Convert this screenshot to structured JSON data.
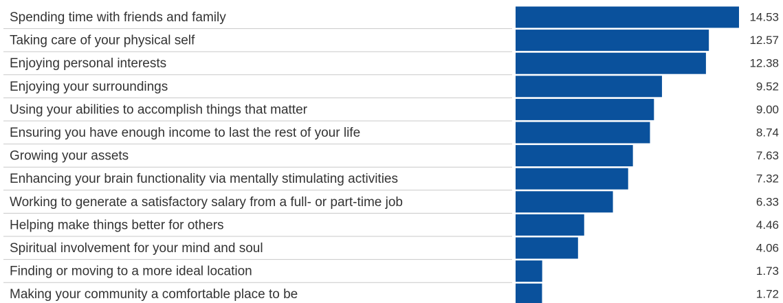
{
  "chart_data": {
    "type": "hbar",
    "categories": [
      "Spending time with friends and family",
      "Taking care of your physical self",
      "Enjoying personal interests",
      "Enjoying your surroundings",
      "Using your abilities to accomplish things that matter",
      "Ensuring you have enough income to last the rest of your life",
      "Growing your assets",
      "Enhancing your brain functionality via mentally stimulating activities",
      "Working to generate a satisfactory salary from a full- or part-time job",
      "Helping make things better for others",
      "Spiritual involvement for your mind and soul",
      "Finding or moving to a more ideal location",
      "Making your community a comfortable place to be"
    ],
    "values": [
      14.53,
      12.57,
      12.38,
      9.52,
      9.0,
      8.74,
      7.63,
      7.32,
      6.33,
      4.46,
      4.06,
      1.73,
      1.72
    ],
    "value_labels": [
      "14.53",
      "12.57",
      "12.38",
      "9.52",
      "9.00",
      "8.74",
      "7.63",
      "7.32",
      "6.33",
      "4.46",
      "4.06",
      "1.73",
      "1.72"
    ],
    "color": "#0a519c"
  }
}
